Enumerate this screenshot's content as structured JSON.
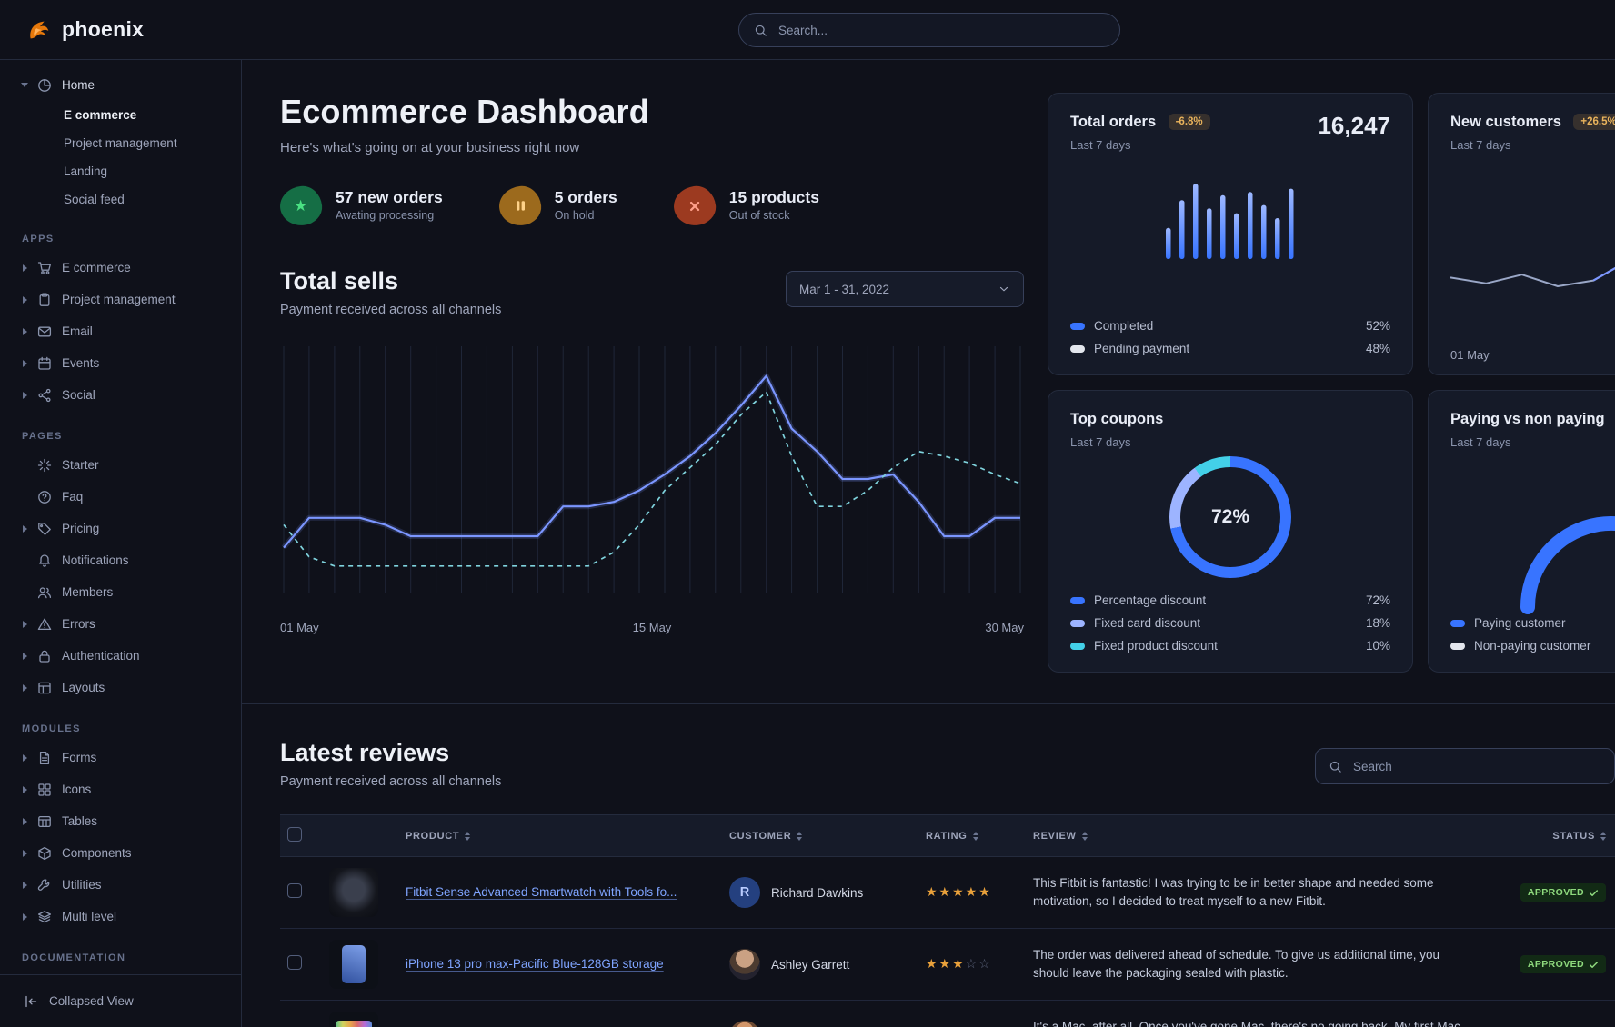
{
  "brand": {
    "name": "phoenix"
  },
  "topnav": {
    "search_placeholder": "Search..."
  },
  "sidebar": {
    "collapsed_view": "Collapsed View",
    "sections": [
      {
        "label": "",
        "items": [
          {
            "label": "Home",
            "icon": "pie",
            "caret": "down",
            "children": [
              {
                "label": "E commerce",
                "active": true
              },
              {
                "label": "Project management"
              },
              {
                "label": "Landing"
              },
              {
                "label": "Social feed"
              }
            ]
          }
        ]
      },
      {
        "label": "APPS",
        "items": [
          {
            "label": "E commerce",
            "icon": "cart",
            "caret": "right"
          },
          {
            "label": "Project management",
            "icon": "clipboard",
            "caret": "right"
          },
          {
            "label": "Email",
            "icon": "mail",
            "caret": "right"
          },
          {
            "label": "Events",
            "icon": "calendar",
            "caret": "right"
          },
          {
            "label": "Social",
            "icon": "share",
            "caret": "right"
          }
        ]
      },
      {
        "label": "PAGES",
        "items": [
          {
            "label": "Starter",
            "icon": "loader"
          },
          {
            "label": "Faq",
            "icon": "help"
          },
          {
            "label": "Pricing",
            "icon": "tag",
            "caret": "right"
          },
          {
            "label": "Notifications",
            "icon": "bell"
          },
          {
            "label": "Members",
            "icon": "users"
          },
          {
            "label": "Errors",
            "icon": "alert",
            "caret": "right"
          },
          {
            "label": "Authentication",
            "icon": "lock",
            "caret": "right"
          },
          {
            "label": "Layouts",
            "icon": "layout",
            "caret": "right"
          }
        ]
      },
      {
        "label": "MODULES",
        "items": [
          {
            "label": "Forms",
            "icon": "file",
            "caret": "right"
          },
          {
            "label": "Icons",
            "icon": "grid",
            "caret": "right"
          },
          {
            "label": "Tables",
            "icon": "table",
            "caret": "right"
          },
          {
            "label": "Components",
            "icon": "box",
            "caret": "right"
          },
          {
            "label": "Utilities",
            "icon": "tool",
            "caret": "right"
          },
          {
            "label": "Multi level",
            "icon": "layers",
            "caret": "right"
          }
        ]
      },
      {
        "label": "DOCUMENTATION",
        "items": []
      }
    ]
  },
  "header": {
    "title": "Ecommerce Dashboard",
    "subtitle": "Here's what's going on at your business right now"
  },
  "stats": [
    {
      "value": "57 new orders",
      "caption": "Awating processing",
      "icon": "star",
      "tone": "green"
    },
    {
      "value": "5 orders",
      "caption": "On hold",
      "icon": "pause",
      "tone": "orange"
    },
    {
      "value": "15 products",
      "caption": "Out of stock",
      "icon": "x",
      "tone": "red"
    }
  ],
  "total_sells": {
    "title": "Total sells",
    "subtitle": "Payment received across all channels",
    "date_range": "Mar 1 - 31, 2022"
  },
  "chart_data": [
    {
      "id": "total-sells",
      "type": "line",
      "title": "Total sells",
      "x_ticks": [
        "01 May",
        "15 May",
        "30 May"
      ],
      "ylim": [
        0,
        100
      ],
      "grid": "vertical",
      "series": [
        {
          "name": "current period",
          "style": "solid",
          "color": "#7b96ff",
          "values": [
            20,
            33,
            33,
            33,
            30,
            25,
            25,
            25,
            25,
            25,
            25,
            38,
            38,
            40,
            45,
            52,
            60,
            70,
            82,
            95,
            72,
            62,
            50,
            50,
            52,
            40,
            25,
            25,
            33,
            33
          ]
        },
        {
          "name": "previous period",
          "style": "dashed",
          "color": "#7fd3dd",
          "values": [
            30,
            16,
            12,
            12,
            12,
            12,
            12,
            12,
            12,
            12,
            12,
            12,
            12,
            18,
            30,
            45,
            55,
            65,
            78,
            88,
            60,
            38,
            38,
            45,
            55,
            62,
            60,
            57,
            52,
            48
          ]
        }
      ]
    },
    {
      "id": "total-orders",
      "type": "bar",
      "color_top": "#9db8ff",
      "color_bottom": "#3874ff",
      "values": [
        38,
        72,
        92,
        62,
        78,
        56,
        82,
        66,
        50,
        86
      ]
    },
    {
      "id": "new-customers",
      "type": "line",
      "color": "#9aa7c7",
      "highlight_color": "#7b96ff",
      "values": [
        46,
        42,
        48,
        40,
        44,
        58,
        50,
        66,
        58,
        54
      ]
    },
    {
      "id": "top-coupons",
      "type": "donut",
      "center_label": "72%",
      "slices": [
        {
          "label": "Percentage discount",
          "value": 72,
          "color": "#3874ff"
        },
        {
          "label": "Fixed card discount",
          "value": 18,
          "color": "#9db4ff"
        },
        {
          "label": "Fixed product discount",
          "value": 10,
          "color": "#43d0e8"
        }
      ]
    },
    {
      "id": "paying-gauge",
      "type": "gauge",
      "segments": [
        {
          "label": "Paying customer",
          "fraction": 0.8,
          "color": "#3874ff"
        },
        {
          "label": "Non-paying customer",
          "fraction": 0.2,
          "color": "#e3e6ed"
        }
      ]
    }
  ],
  "cards": {
    "total_orders": {
      "title": "Total orders",
      "badge": "-6.8%",
      "period": "Last 7 days",
      "value": "16,247",
      "legend": [
        {
          "label": "Completed",
          "value": "52%",
          "color": "#3874ff"
        },
        {
          "label": "Pending payment",
          "value": "48%",
          "color": "#e3e6ed"
        }
      ]
    },
    "new_customers": {
      "title": "New customers",
      "badge": "+26.5%",
      "period": "Last 7 days",
      "x_label": "01 May"
    },
    "top_coupons": {
      "title": "Top coupons",
      "period": "Last 7 days",
      "legend": [
        {
          "label": "Percentage discount",
          "value": "72%",
          "color": "#3874ff"
        },
        {
          "label": "Fixed card discount",
          "value": "18%",
          "color": "#9db4ff"
        },
        {
          "label": "Fixed product discount",
          "value": "10%",
          "color": "#43d0e8"
        }
      ]
    },
    "paying": {
      "title": "Paying vs non paying",
      "period": "Last 7 days",
      "legend": [
        {
          "label": "Paying customer",
          "color": "#3874ff"
        },
        {
          "label": "Non-paying customer",
          "color": "#e3e6ed"
        }
      ]
    }
  },
  "reviews": {
    "title": "Latest reviews",
    "subtitle": "Payment received across all channels",
    "search_placeholder": "Search",
    "columns": [
      {
        "label": "PRODUCT"
      },
      {
        "label": "CUSTOMER"
      },
      {
        "label": "RATING"
      },
      {
        "label": "REVIEW"
      },
      {
        "label": "STATUS",
        "align": "right"
      }
    ],
    "rows": [
      {
        "product": "Fitbit Sense Advanced Smartwatch with Tools fo...",
        "thumb": "watch",
        "customer": "Richard Dawkins",
        "avatar": "initial",
        "avatar_text": "R",
        "rating": 5,
        "review": "This Fitbit is fantastic! I was trying to be in better shape and needed some motivation, so I decided to treat myself to a new Fitbit.",
        "status": "APPROVED"
      },
      {
        "product": "iPhone 13 pro max-Pacific Blue-128GB storage",
        "thumb": "phone",
        "customer": "Ashley Garrett",
        "avatar": "photo1",
        "rating": 3,
        "review": "The order was delivered ahead of schedule. To give us additional time, you should leave the packaging sealed with plastic.",
        "status": "APPROVED"
      },
      {
        "product": "",
        "thumb": "imac",
        "customer": "",
        "avatar": "photo2",
        "rating": null,
        "review": "It's a Mac, after all. Once you've gone Mac, there's no going back. My first Mac lasted",
        "status": ""
      }
    ]
  }
}
